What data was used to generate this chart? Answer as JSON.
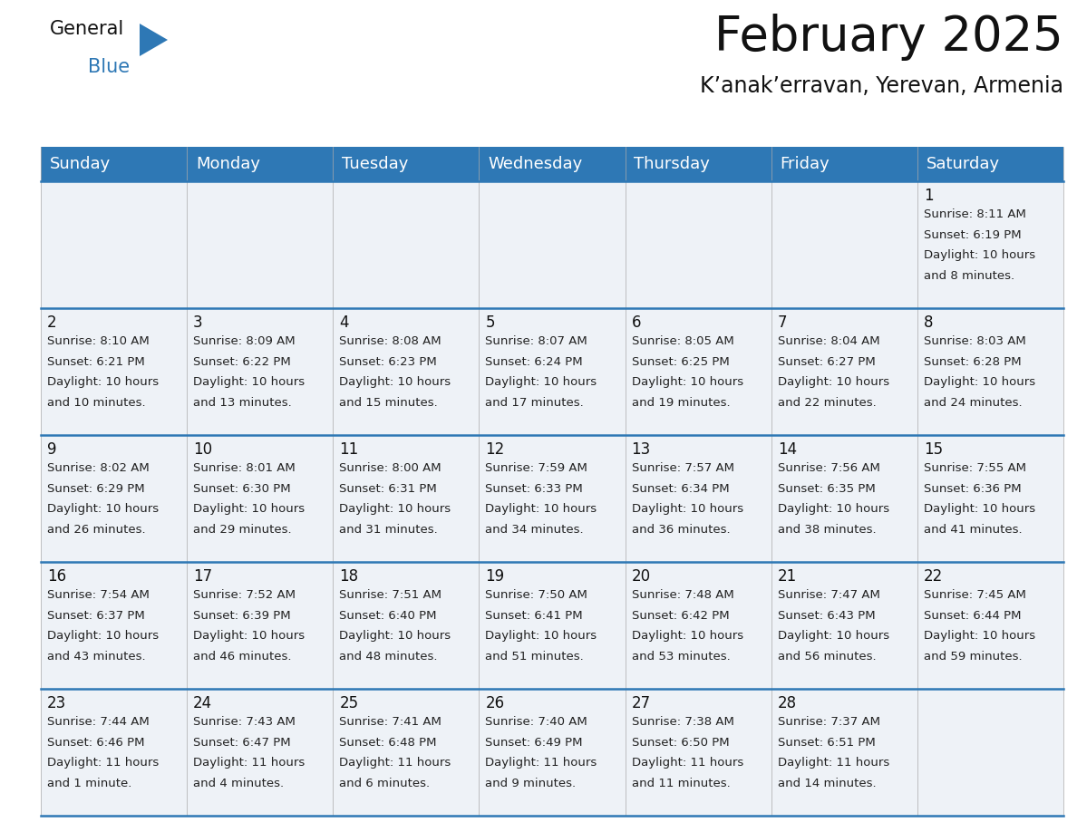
{
  "title": "February 2025",
  "subtitle": "K’anak’erravan, Yerevan, Armenia",
  "header_bg_color": "#2e78b5",
  "header_text_color": "#ffffff",
  "bg_color": "#ffffff",
  "cell_bg_color": "#eef2f7",
  "line_color": "#2e78b5",
  "day_headers": [
    "Sunday",
    "Monday",
    "Tuesday",
    "Wednesday",
    "Thursday",
    "Friday",
    "Saturday"
  ],
  "title_fontsize": 38,
  "subtitle_fontsize": 17,
  "header_fontsize": 13,
  "day_num_fontsize": 12,
  "info_fontsize": 9.5,
  "calendar_data": [
    [
      null,
      null,
      null,
      null,
      null,
      null,
      {
        "day": "1",
        "sunrise": "8:11 AM",
        "sunset": "6:19 PM",
        "daylight_line1": "Daylight: 10 hours",
        "daylight_line2": "and 8 minutes."
      }
    ],
    [
      {
        "day": "2",
        "sunrise": "8:10 AM",
        "sunset": "6:21 PM",
        "daylight_line1": "Daylight: 10 hours",
        "daylight_line2": "and 10 minutes."
      },
      {
        "day": "3",
        "sunrise": "8:09 AM",
        "sunset": "6:22 PM",
        "daylight_line1": "Daylight: 10 hours",
        "daylight_line2": "and 13 minutes."
      },
      {
        "day": "4",
        "sunrise": "8:08 AM",
        "sunset": "6:23 PM",
        "daylight_line1": "Daylight: 10 hours",
        "daylight_line2": "and 15 minutes."
      },
      {
        "day": "5",
        "sunrise": "8:07 AM",
        "sunset": "6:24 PM",
        "daylight_line1": "Daylight: 10 hours",
        "daylight_line2": "and 17 minutes."
      },
      {
        "day": "6",
        "sunrise": "8:05 AM",
        "sunset": "6:25 PM",
        "daylight_line1": "Daylight: 10 hours",
        "daylight_line2": "and 19 minutes."
      },
      {
        "day": "7",
        "sunrise": "8:04 AM",
        "sunset": "6:27 PM",
        "daylight_line1": "Daylight: 10 hours",
        "daylight_line2": "and 22 minutes."
      },
      {
        "day": "8",
        "sunrise": "8:03 AM",
        "sunset": "6:28 PM",
        "daylight_line1": "Daylight: 10 hours",
        "daylight_line2": "and 24 minutes."
      }
    ],
    [
      {
        "day": "9",
        "sunrise": "8:02 AM",
        "sunset": "6:29 PM",
        "daylight_line1": "Daylight: 10 hours",
        "daylight_line2": "and 26 minutes."
      },
      {
        "day": "10",
        "sunrise": "8:01 AM",
        "sunset": "6:30 PM",
        "daylight_line1": "Daylight: 10 hours",
        "daylight_line2": "and 29 minutes."
      },
      {
        "day": "11",
        "sunrise": "8:00 AM",
        "sunset": "6:31 PM",
        "daylight_line1": "Daylight: 10 hours",
        "daylight_line2": "and 31 minutes."
      },
      {
        "day": "12",
        "sunrise": "7:59 AM",
        "sunset": "6:33 PM",
        "daylight_line1": "Daylight: 10 hours",
        "daylight_line2": "and 34 minutes."
      },
      {
        "day": "13",
        "sunrise": "7:57 AM",
        "sunset": "6:34 PM",
        "daylight_line1": "Daylight: 10 hours",
        "daylight_line2": "and 36 minutes."
      },
      {
        "day": "14",
        "sunrise": "7:56 AM",
        "sunset": "6:35 PM",
        "daylight_line1": "Daylight: 10 hours",
        "daylight_line2": "and 38 minutes."
      },
      {
        "day": "15",
        "sunrise": "7:55 AM",
        "sunset": "6:36 PM",
        "daylight_line1": "Daylight: 10 hours",
        "daylight_line2": "and 41 minutes."
      }
    ],
    [
      {
        "day": "16",
        "sunrise": "7:54 AM",
        "sunset": "6:37 PM",
        "daylight_line1": "Daylight: 10 hours",
        "daylight_line2": "and 43 minutes."
      },
      {
        "day": "17",
        "sunrise": "7:52 AM",
        "sunset": "6:39 PM",
        "daylight_line1": "Daylight: 10 hours",
        "daylight_line2": "and 46 minutes."
      },
      {
        "day": "18",
        "sunrise": "7:51 AM",
        "sunset": "6:40 PM",
        "daylight_line1": "Daylight: 10 hours",
        "daylight_line2": "and 48 minutes."
      },
      {
        "day": "19",
        "sunrise": "7:50 AM",
        "sunset": "6:41 PM",
        "daylight_line1": "Daylight: 10 hours",
        "daylight_line2": "and 51 minutes."
      },
      {
        "day": "20",
        "sunrise": "7:48 AM",
        "sunset": "6:42 PM",
        "daylight_line1": "Daylight: 10 hours",
        "daylight_line2": "and 53 minutes."
      },
      {
        "day": "21",
        "sunrise": "7:47 AM",
        "sunset": "6:43 PM",
        "daylight_line1": "Daylight: 10 hours",
        "daylight_line2": "and 56 minutes."
      },
      {
        "day": "22",
        "sunrise": "7:45 AM",
        "sunset": "6:44 PM",
        "daylight_line1": "Daylight: 10 hours",
        "daylight_line2": "and 59 minutes."
      }
    ],
    [
      {
        "day": "23",
        "sunrise": "7:44 AM",
        "sunset": "6:46 PM",
        "daylight_line1": "Daylight: 11 hours",
        "daylight_line2": "and 1 minute."
      },
      {
        "day": "24",
        "sunrise": "7:43 AM",
        "sunset": "6:47 PM",
        "daylight_line1": "Daylight: 11 hours",
        "daylight_line2": "and 4 minutes."
      },
      {
        "day": "25",
        "sunrise": "7:41 AM",
        "sunset": "6:48 PM",
        "daylight_line1": "Daylight: 11 hours",
        "daylight_line2": "and 6 minutes."
      },
      {
        "day": "26",
        "sunrise": "7:40 AM",
        "sunset": "6:49 PM",
        "daylight_line1": "Daylight: 11 hours",
        "daylight_line2": "and 9 minutes."
      },
      {
        "day": "27",
        "sunrise": "7:38 AM",
        "sunset": "6:50 PM",
        "daylight_line1": "Daylight: 11 hours",
        "daylight_line2": "and 11 minutes."
      },
      {
        "day": "28",
        "sunrise": "7:37 AM",
        "sunset": "6:51 PM",
        "daylight_line1": "Daylight: 11 hours",
        "daylight_line2": "and 14 minutes."
      },
      null
    ]
  ]
}
